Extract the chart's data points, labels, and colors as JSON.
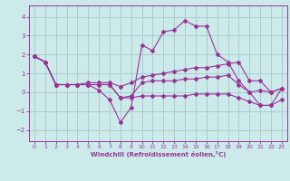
{
  "title": "",
  "xlabel": "Windchill (Refroidissement éolien,°C)",
  "background_color": "#cceaea",
  "grid_color": "#aacccc",
  "line_color": "#993399",
  "xlim": [
    -0.5,
    23.5
  ],
  "ylim": [
    -2.6,
    4.6
  ],
  "xticks": [
    0,
    1,
    2,
    3,
    4,
    5,
    6,
    7,
    8,
    9,
    10,
    11,
    12,
    13,
    14,
    15,
    16,
    17,
    18,
    19,
    20,
    21,
    22,
    23
  ],
  "yticks": [
    -2,
    -1,
    0,
    1,
    2,
    3,
    4
  ],
  "series": [
    [
      1.9,
      1.6,
      0.4,
      0.4,
      0.4,
      0.4,
      0.1,
      -0.4,
      -1.6,
      -0.8,
      2.5,
      2.2,
      3.2,
      3.3,
      3.8,
      3.5,
      3.5,
      2.0,
      1.6,
      0.6,
      0.0,
      -0.7,
      -0.7,
      0.2
    ],
    [
      1.9,
      1.6,
      0.4,
      0.4,
      0.4,
      0.5,
      0.5,
      0.5,
      0.3,
      0.5,
      0.8,
      0.9,
      1.0,
      1.1,
      1.2,
      1.3,
      1.3,
      1.4,
      1.5,
      1.6,
      0.6,
      0.6,
      0.0,
      0.2
    ],
    [
      1.9,
      1.6,
      0.4,
      0.4,
      0.4,
      0.4,
      0.4,
      0.4,
      -0.3,
      -0.2,
      0.5,
      0.6,
      0.6,
      0.6,
      0.7,
      0.7,
      0.8,
      0.8,
      0.9,
      0.4,
      0.0,
      0.1,
      0.0,
      0.2
    ],
    [
      1.9,
      1.6,
      0.4,
      0.4,
      0.4,
      0.4,
      0.4,
      0.4,
      -0.3,
      -0.3,
      -0.2,
      -0.2,
      -0.2,
      -0.2,
      -0.2,
      -0.1,
      -0.1,
      -0.1,
      -0.1,
      -0.3,
      -0.5,
      -0.7,
      -0.7,
      -0.4
    ]
  ]
}
